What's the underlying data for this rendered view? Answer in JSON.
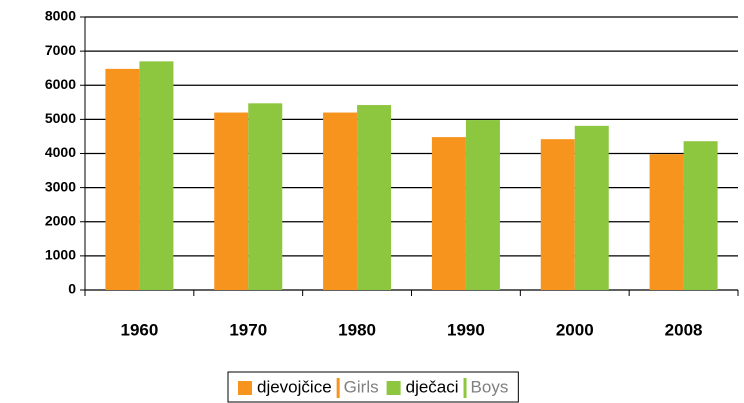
{
  "chart_data": {
    "type": "bar",
    "categories": [
      "1960",
      "1970",
      "1980",
      "1990",
      "2000",
      "2008"
    ],
    "series": [
      {
        "name": "djevojčice",
        "name_en": "Girls",
        "color": "#f7941d",
        "values": [
          6480,
          5200,
          5200,
          4480,
          4420,
          3980
        ]
      },
      {
        "name": "dječaci",
        "name_en": "Boys",
        "color": "#8dc63f",
        "values": [
          6700,
          5470,
          5420,
          4980,
          4810,
          4360
        ]
      }
    ],
    "ylim": [
      0,
      8000
    ],
    "yticks": [
      0,
      1000,
      2000,
      3000,
      4000,
      5000,
      6000,
      7000,
      8000
    ],
    "grid": true,
    "legend": "bottom"
  }
}
